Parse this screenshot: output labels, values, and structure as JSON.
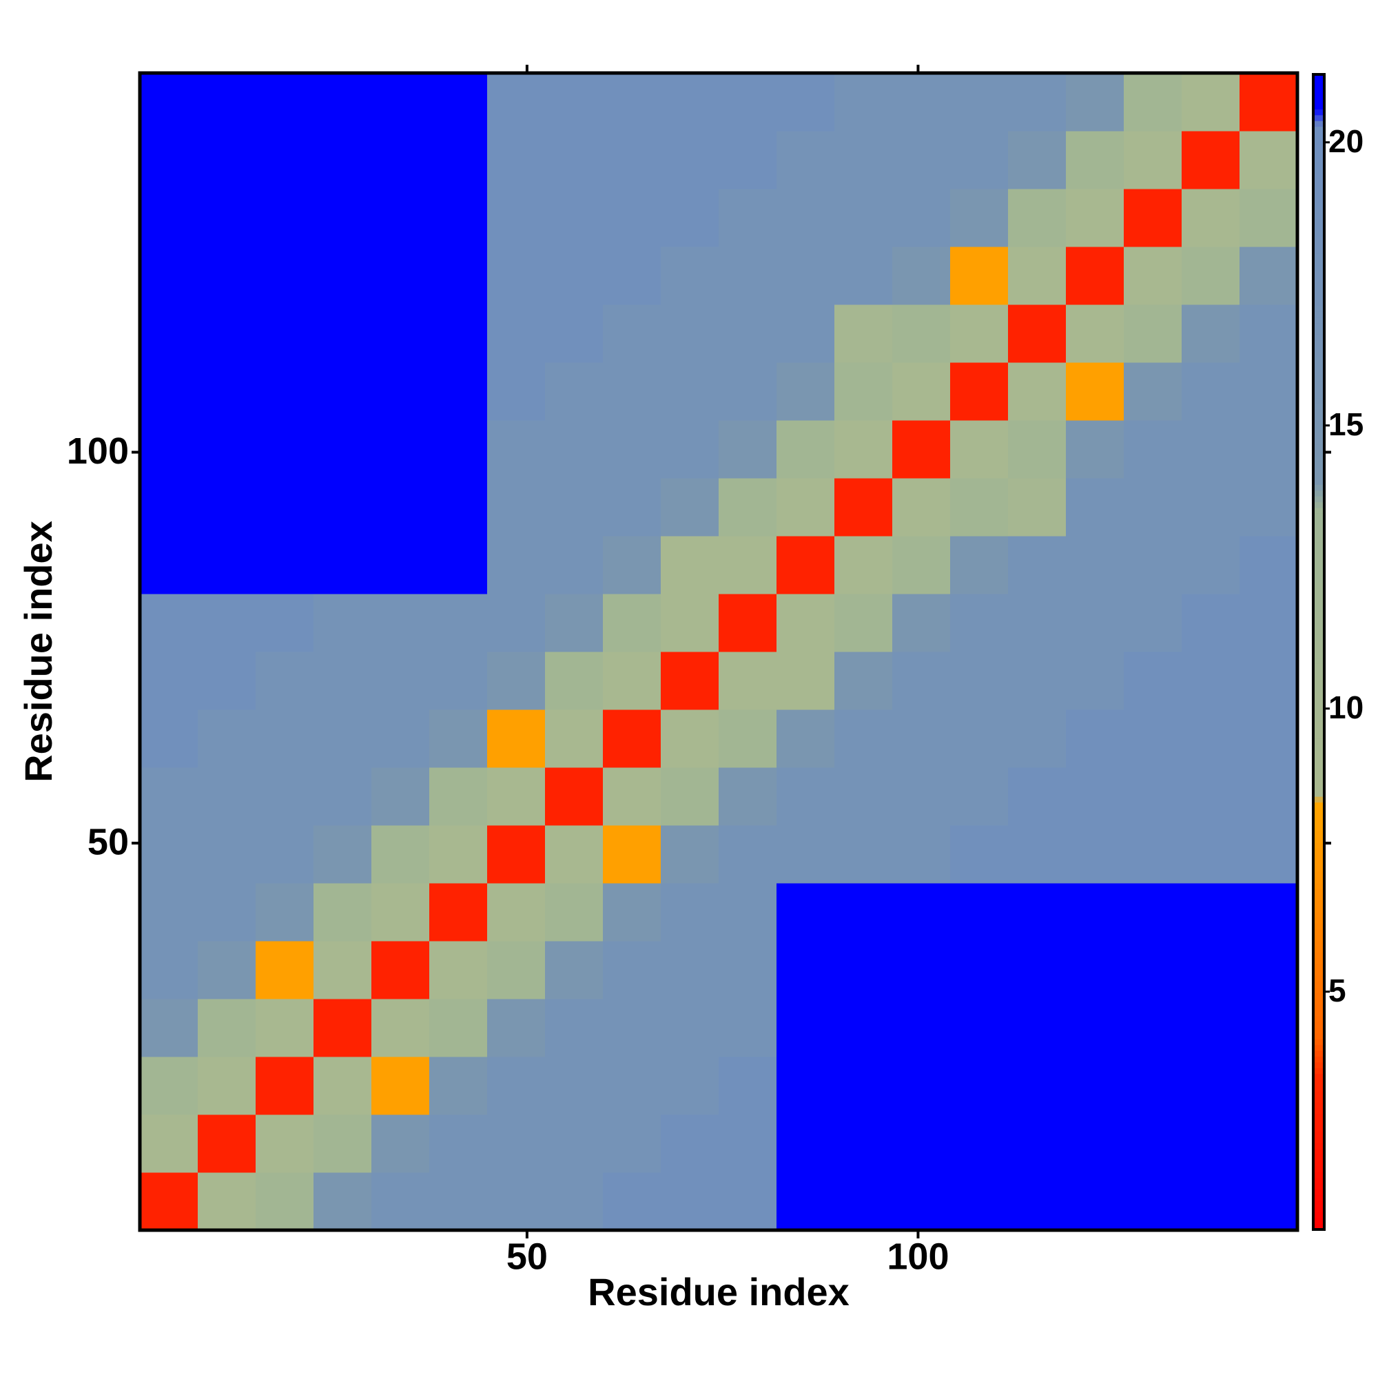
{
  "chart_data": {
    "type": "heatmap",
    "x_label": "Residue index",
    "y_label": "Residue index",
    "xlim": [
      0.5,
      148.5
    ],
    "ylim": [
      0.5,
      148.5
    ],
    "xticks": [
      50,
      100
    ],
    "yticks": [
      50,
      100
    ],
    "xbins": [
      0.5,
      7.9,
      15.3,
      22.7,
      30.1,
      37.5,
      44.9,
      52.3,
      59.7,
      67.1,
      74.5,
      81.9,
      89.3,
      96.7,
      104.1,
      111.5,
      118.9,
      126.3,
      133.7,
      141.1,
      148.5
    ],
    "ybins": [
      0.5,
      7.9,
      15.3,
      22.7,
      30.1,
      37.5,
      44.9,
      52.3,
      59.7,
      67.1,
      74.5,
      81.9,
      89.3,
      96.7,
      104.1,
      111.5,
      118.9,
      126.3,
      133.7,
      141.1,
      148.5
    ],
    "values": [
      [
        3,
        9,
        12,
        14,
        17,
        17,
        17,
        17,
        19,
        19,
        19,
        21,
        21,
        21,
        21,
        21,
        21,
        21,
        21,
        21
      ],
      [
        9,
        3,
        9,
        12,
        14,
        17,
        17,
        17,
        17,
        19,
        19,
        21,
        21,
        21,
        21,
        21,
        21,
        21,
        21,
        21
      ],
      [
        12,
        9,
        3,
        9,
        8,
        14,
        17,
        17,
        17,
        17,
        19,
        21,
        21,
        21,
        21,
        21,
        21,
        21,
        21,
        21
      ],
      [
        14,
        12,
        9,
        3,
        9,
        12,
        14,
        17,
        17,
        17,
        17,
        21,
        21,
        21,
        21,
        21,
        21,
        21,
        21,
        21
      ],
      [
        17,
        14,
        8,
        9,
        3,
        9,
        12,
        14,
        17,
        17,
        17,
        21,
        21,
        21,
        21,
        21,
        21,
        21,
        21,
        21
      ],
      [
        17,
        17,
        14,
        12,
        9,
        3,
        9,
        12,
        14,
        17,
        17,
        21,
        21,
        21,
        21,
        21,
        21,
        21,
        21,
        21
      ],
      [
        17,
        17,
        17,
        14,
        12,
        9,
        3,
        9,
        8,
        14,
        17,
        17,
        17,
        17,
        19,
        19,
        19,
        19,
        19,
        19
      ],
      [
        17,
        17,
        17,
        17,
        14,
        12,
        9,
        3,
        9,
        12,
        14,
        17,
        17,
        17,
        17,
        19,
        19,
        19,
        19,
        19
      ],
      [
        19,
        17,
        17,
        17,
        17,
        14,
        8,
        9,
        3,
        9,
        12,
        14,
        17,
        17,
        17,
        17,
        19,
        19,
        19,
        19
      ],
      [
        19,
        19,
        17,
        17,
        17,
        17,
        14,
        12,
        9,
        3,
        9,
        9,
        14,
        17,
        17,
        17,
        17,
        19,
        19,
        19
      ],
      [
        19,
        19,
        19,
        17,
        17,
        17,
        17,
        14,
        12,
        9,
        3,
        9,
        12,
        14,
        17,
        17,
        17,
        17,
        19,
        19
      ],
      [
        21,
        21,
        21,
        21,
        21,
        21,
        17,
        17,
        14,
        9,
        9,
        3,
        9,
        12,
        14,
        17,
        17,
        17,
        17,
        19
      ],
      [
        21,
        21,
        21,
        21,
        21,
        21,
        17,
        17,
        17,
        14,
        12,
        9,
        3,
        9,
        12,
        10,
        17,
        17,
        17,
        17
      ],
      [
        21,
        21,
        21,
        21,
        21,
        21,
        17,
        17,
        17,
        17,
        14,
        12,
        9,
        3,
        9,
        12,
        14,
        17,
        17,
        17
      ],
      [
        21,
        21,
        21,
        21,
        21,
        21,
        19,
        17,
        17,
        17,
        17,
        14,
        12,
        9,
        3,
        9,
        8,
        14,
        17,
        17
      ],
      [
        21,
        21,
        21,
        21,
        21,
        21,
        19,
        19,
        17,
        17,
        17,
        17,
        10,
        12,
        9,
        3,
        9,
        12,
        14,
        17
      ],
      [
        21,
        21,
        21,
        21,
        21,
        21,
        19,
        19,
        19,
        17,
        17,
        17,
        17,
        14,
        8,
        9,
        3,
        9,
        12,
        14
      ],
      [
        21,
        21,
        21,
        21,
        21,
        21,
        19,
        19,
        19,
        19,
        17,
        17,
        17,
        17,
        14,
        12,
        9,
        3,
        9,
        12
      ],
      [
        21,
        21,
        21,
        21,
        21,
        21,
        19,
        19,
        19,
        19,
        19,
        17,
        17,
        17,
        17,
        14,
        12,
        9,
        3,
        9
      ],
      [
        21,
        21,
        21,
        21,
        21,
        21,
        19,
        19,
        19,
        19,
        19,
        19,
        17,
        17,
        17,
        17,
        14,
        12,
        9,
        3
      ]
    ],
    "clim": [
      0.8,
      21.2
    ],
    "cticks": [
      5,
      10,
      15,
      20
    ],
    "colorscale": [
      {
        "value": 0.8,
        "color": "#ff0000"
      },
      {
        "value": 3.5,
        "color": "#ff2a00"
      },
      {
        "value": 4.2,
        "color": "#ff6600"
      },
      {
        "value": 8.3,
        "color": "#ffa500"
      },
      {
        "value": 8.5,
        "color": "#a9b88f"
      },
      {
        "value": 13.5,
        "color": "#9fb595"
      },
      {
        "value": 14,
        "color": "#7a96b0"
      },
      {
        "value": 20.3,
        "color": "#6f8fbf"
      },
      {
        "value": 20.6,
        "color": "#0000ff"
      },
      {
        "value": 21.2,
        "color": "#0000ff"
      }
    ]
  }
}
